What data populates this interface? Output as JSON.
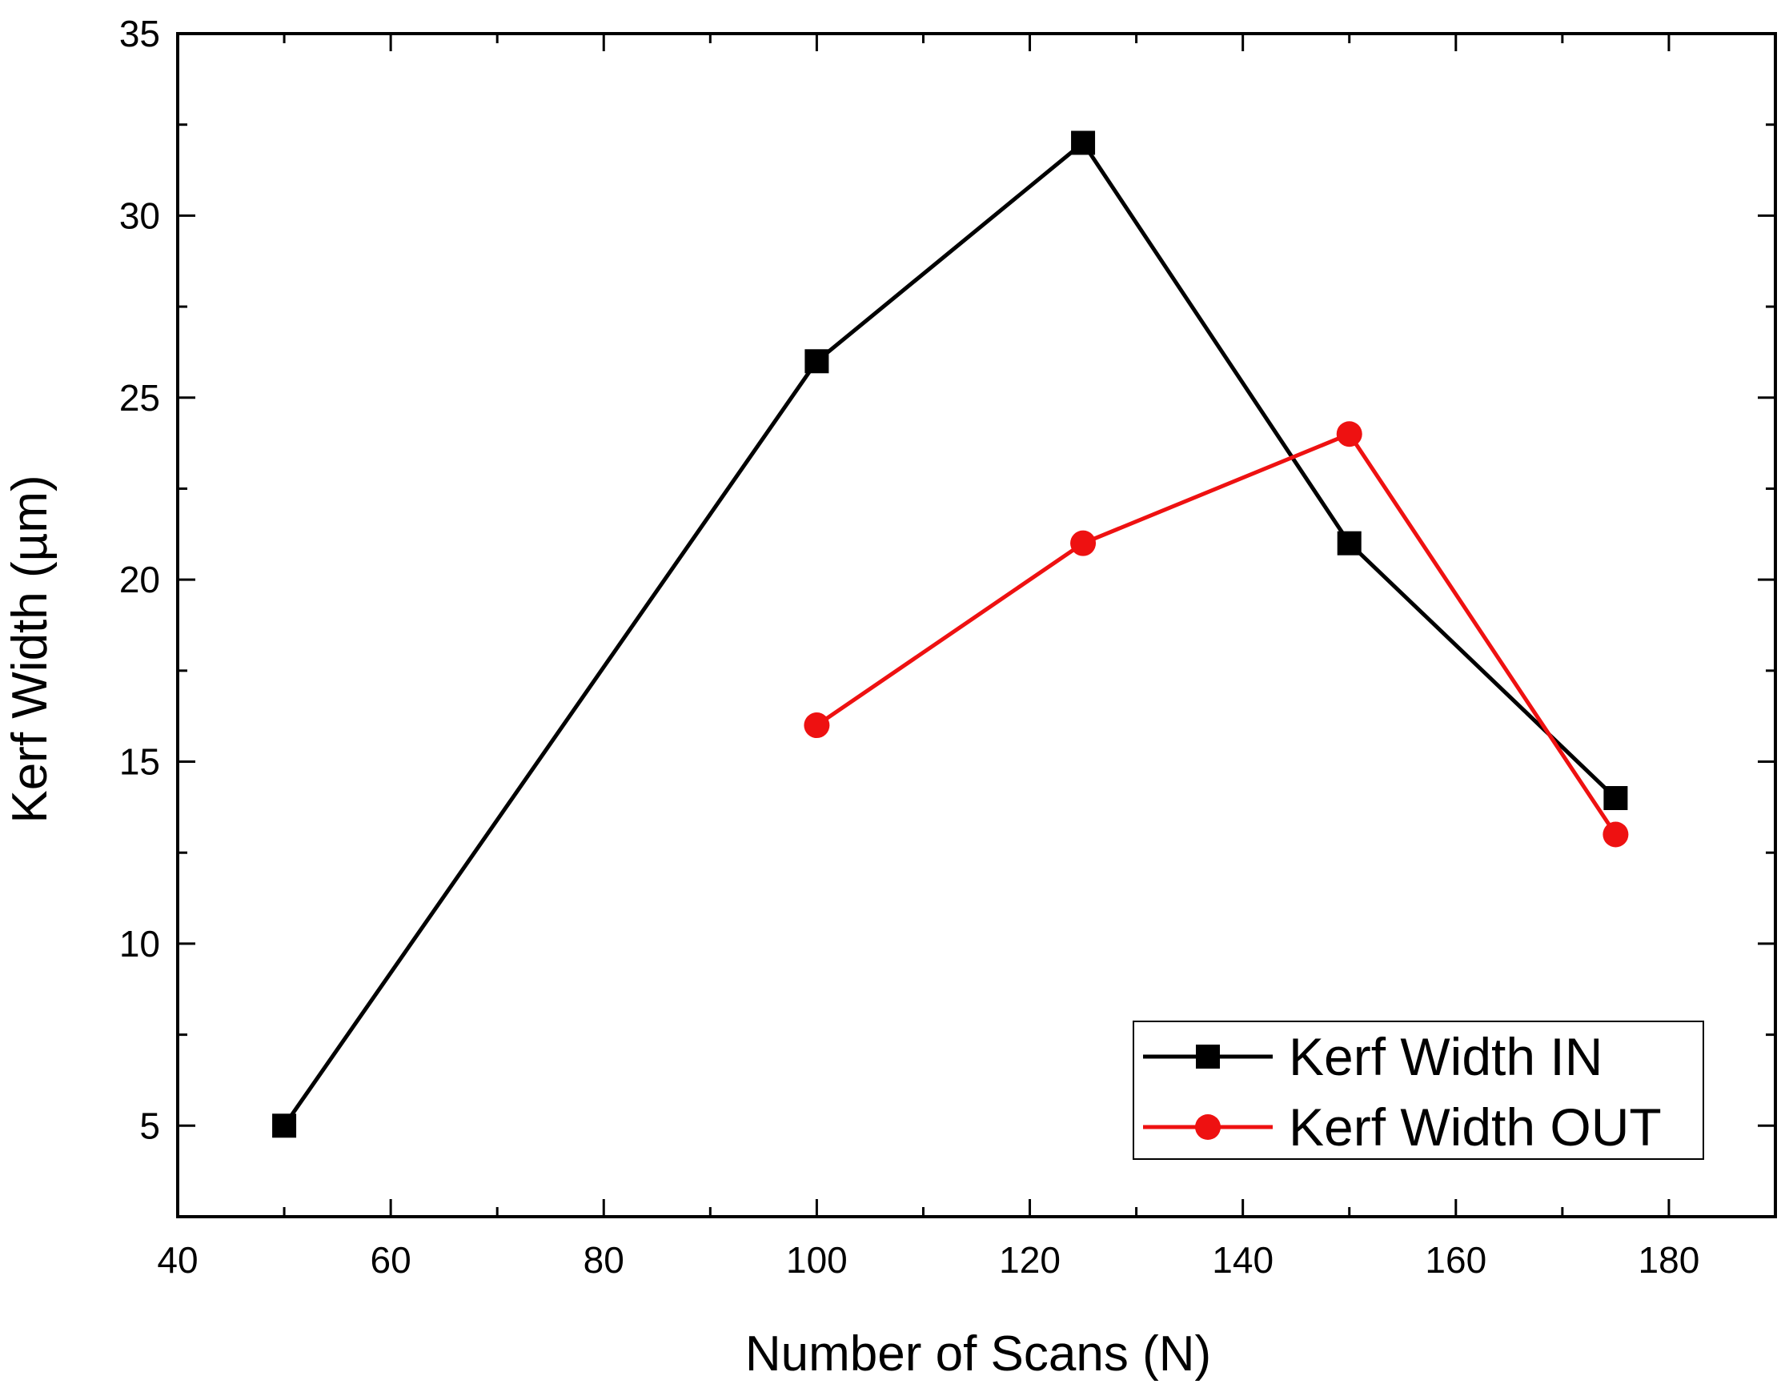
{
  "chart_data": {
    "type": "line",
    "title": "",
    "xlabel": "Number of Scans (N)",
    "ylabel": "Kerf Width (µm)",
    "xlim": [
      40,
      190
    ],
    "ylim": [
      2.5,
      35
    ],
    "x_ticks": [
      40,
      60,
      80,
      100,
      120,
      140,
      160,
      180
    ],
    "x_minor_ticks": [
      50,
      70,
      90,
      110,
      130,
      150,
      170
    ],
    "y_ticks": [
      5,
      10,
      15,
      20,
      25,
      30,
      35
    ],
    "y_minor_ticks": [
      7.5,
      12.5,
      17.5,
      22.5,
      27.5,
      32.5
    ],
    "grid": false,
    "legend_position": "bottom-right",
    "series": [
      {
        "name": "Kerf Width IN",
        "color": "#000000",
        "marker": "square",
        "x": [
          50,
          100,
          125,
          150,
          175
        ],
        "y": [
          5,
          26,
          32,
          21,
          14
        ]
      },
      {
        "name": "Kerf Width OUT",
        "color": "#ee1111",
        "marker": "circle",
        "x": [
          100,
          125,
          150,
          175
        ],
        "y": [
          16,
          21,
          24,
          13
        ]
      }
    ]
  }
}
